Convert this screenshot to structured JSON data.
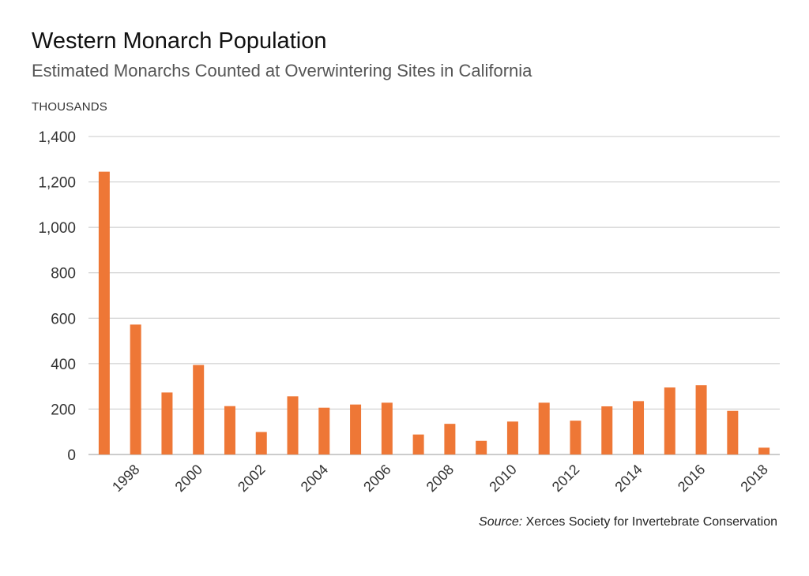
{
  "chart_data": {
    "type": "bar",
    "title": "Western Monarch Population",
    "subtitle": "Estimated Monarchs Counted at Overwintering Sites in California",
    "ylabel": "THOUSANDS",
    "xlabel": "",
    "ylim": [
      0,
      1400
    ],
    "yticks": [
      0,
      200,
      400,
      600,
      800,
      1000,
      1200,
      1400
    ],
    "ytick_labels": [
      "0",
      "200",
      "400",
      "600",
      "800",
      "1,000",
      "1,200",
      "1,400"
    ],
    "categories": [
      "1997",
      "1998",
      "1999",
      "2000",
      "2001",
      "2002",
      "2003",
      "2004",
      "2005",
      "2006",
      "2007",
      "2008",
      "2009",
      "2010",
      "2011",
      "2012",
      "2013",
      "2014",
      "2015",
      "2016",
      "2017",
      "2018"
    ],
    "xtick_labels": [
      "1998",
      "2000",
      "2002",
      "2004",
      "2006",
      "2008",
      "2010",
      "2012",
      "2014",
      "2016",
      "2018"
    ],
    "values": [
      1245,
      572,
      273,
      394,
      213,
      99,
      256,
      206,
      220,
      228,
      88,
      135,
      60,
      145,
      228,
      149,
      212,
      235,
      295,
      305,
      192,
      30
    ],
    "bar_color": "#ee7736",
    "grid": true,
    "legend": "none"
  },
  "source": {
    "label": "Source:",
    "text": "Xerces Society for Invertebrate Conservation"
  }
}
